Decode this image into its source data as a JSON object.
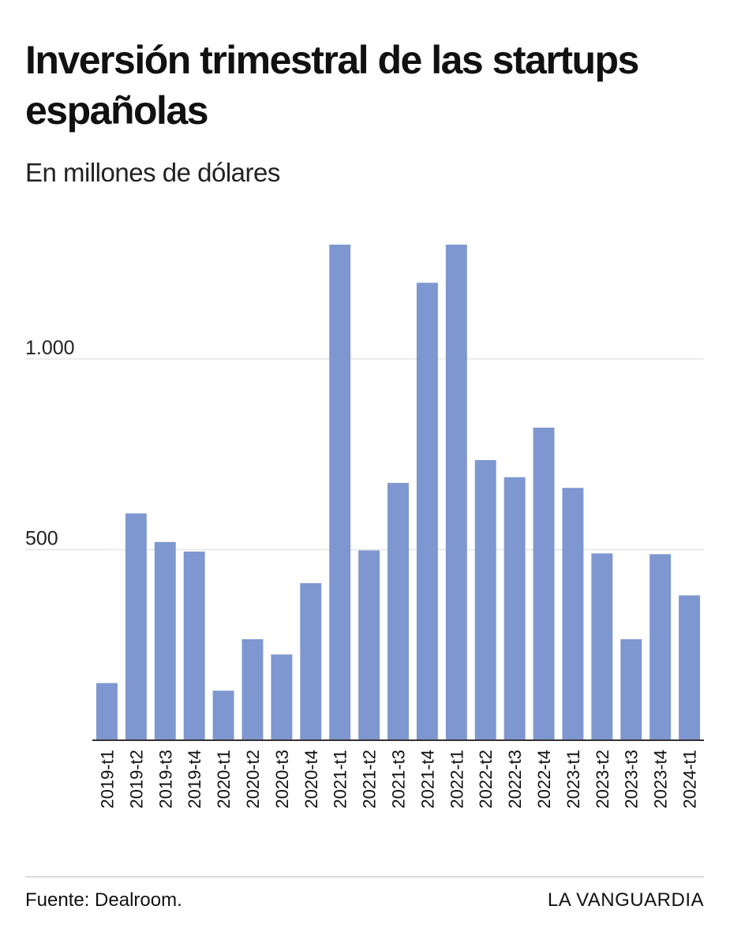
{
  "header": {
    "title": "Inversión trimestral de las startups españolas",
    "subtitle": "En millones de dólares"
  },
  "footer": {
    "source": "Fuente: Dealroom.",
    "brand": "LA VANGUARDIA"
  },
  "colors": {
    "bar": "#7f97d0",
    "gridline": "#e6e6e6",
    "axis": "#333333"
  },
  "chart_data": {
    "type": "bar",
    "title": "Inversión trimestral de las startups españolas",
    "subtitle": "En millones de dólares",
    "xlabel": "",
    "ylabel": "",
    "ylim": [
      0,
      1300
    ],
    "yticks": [
      500,
      1000
    ],
    "ytick_labels": [
      "500",
      "1.000"
    ],
    "grid": true,
    "categories": [
      "2019-t1",
      "2019-t2",
      "2019-t3",
      "2019-t4",
      "2020-t1",
      "2020-t2",
      "2020-t3",
      "2020-t4",
      "2021-t1",
      "2021-t2",
      "2021-t3",
      "2021-t4",
      "2022-t1",
      "2022-t2",
      "2022-t3",
      "2022-t4",
      "2023-t1",
      "2023-t2",
      "2023-t3",
      "2023-t4",
      "2024-t1"
    ],
    "values": [
      150,
      595,
      520,
      495,
      130,
      265,
      225,
      412,
      1300,
      498,
      675,
      1200,
      1300,
      735,
      690,
      820,
      662,
      490,
      265,
      488,
      380
    ]
  }
}
